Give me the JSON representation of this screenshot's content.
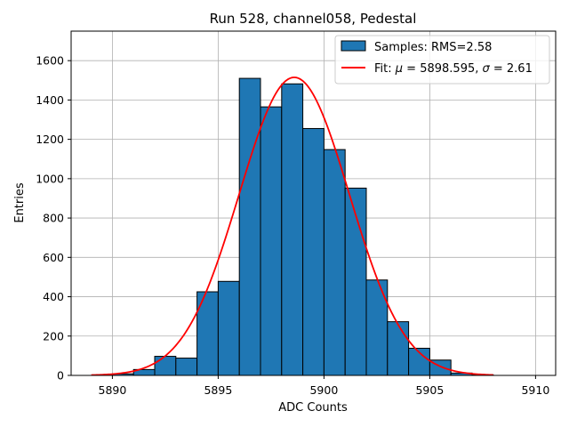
{
  "chart_data": {
    "type": "bar",
    "title": "Run 528, channel058, Pedestal",
    "xlabel": "ADC Counts",
    "ylabel": "Entries",
    "xlim": [
      5888.05,
      5910.95
    ],
    "ylim": [
      0,
      1750
    ],
    "xticks": [
      5890,
      5895,
      5900,
      5905,
      5910
    ],
    "yticks": [
      0,
      200,
      400,
      600,
      800,
      1000,
      1200,
      1400,
      1600
    ],
    "grid": true,
    "legend_position": "top-right",
    "bar_color": "#1f77b4",
    "fit_color": "#ff0000",
    "histogram": {
      "name": "Samples: RMS=2.58",
      "bins": [
        {
          "x0": 5890,
          "x1": 5891,
          "value": 8
        },
        {
          "x0": 5891,
          "x1": 5892,
          "value": 30
        },
        {
          "x0": 5892,
          "x1": 5893,
          "value": 97
        },
        {
          "x0": 5893,
          "x1": 5894,
          "value": 88
        },
        {
          "x0": 5894,
          "x1": 5895,
          "value": 425
        },
        {
          "x0": 5895,
          "x1": 5896,
          "value": 478
        },
        {
          "x0": 5896,
          "x1": 5897,
          "value": 1510
        },
        {
          "x0": 5897,
          "x1": 5898,
          "value": 1365
        },
        {
          "x0": 5898,
          "x1": 5899,
          "value": 1482
        },
        {
          "x0": 5899,
          "x1": 5900,
          "value": 1255
        },
        {
          "x0": 5900,
          "x1": 5901,
          "value": 1148
        },
        {
          "x0": 5901,
          "x1": 5902,
          "value": 952
        },
        {
          "x0": 5902,
          "x1": 5903,
          "value": 485
        },
        {
          "x0": 5903,
          "x1": 5904,
          "value": 273
        },
        {
          "x0": 5904,
          "x1": 5905,
          "value": 138
        },
        {
          "x0": 5905,
          "x1": 5906,
          "value": 78
        },
        {
          "x0": 5906,
          "x1": 5907,
          "value": 12
        },
        {
          "x0": 5907,
          "x1": 5908,
          "value": 3
        }
      ]
    },
    "fit": {
      "name": "Fit: μ = 5898.595, σ = 2.61",
      "name_prefix": "Fit: ",
      "name_mu_symbol": "μ",
      "name_mid": " = 5898.595, ",
      "name_sigma_symbol": "σ",
      "name_suffix": " = 2.61",
      "mu": 5898.595,
      "sigma": 2.61,
      "amplitude": 1515,
      "x_range": [
        5889,
        5908
      ]
    }
  }
}
